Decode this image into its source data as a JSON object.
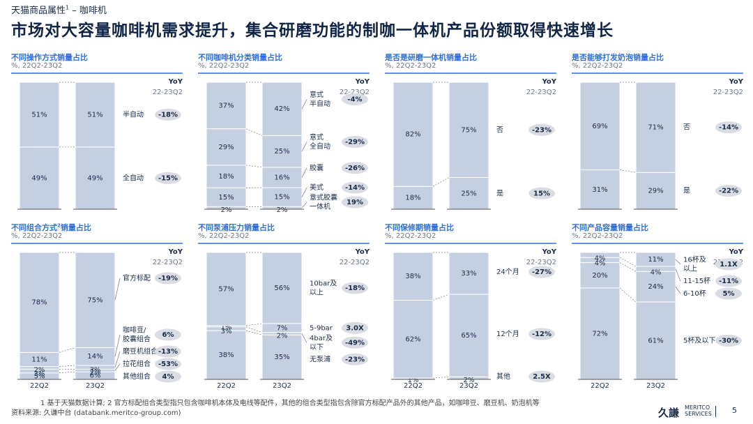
{
  "header": {
    "breadcrumb": "天猫商品属性",
    "breadcrumb_sup": "1",
    "breadcrumb_tail": " – 咖啡机",
    "title": "市场对大容量咖啡机需求提升，集合研磨功能的制咖一体机产品份额取得快速增长"
  },
  "colors": {
    "bar": "#c5cfe2",
    "accent": "#2f6fd6",
    "badge": "#d9dce3",
    "text": "#1a2b4a"
  },
  "yoy_header": {
    "label": "YoY",
    "period": "22-23Q2"
  },
  "chart_data": [
    {
      "type": "bar",
      "stacked": true,
      "title": "不同操作方式销量占比",
      "title_sup": "",
      "subtitle": "%, 22Q2-23Q2",
      "categories": [
        "22Q2",
        "23Q2"
      ],
      "show_categories": false,
      "series": [
        {
          "name": "全自动",
          "values": [
            49,
            49
          ],
          "labels": [
            "49%",
            "49%"
          ],
          "yoy": "-15%"
        },
        {
          "name": "半自动",
          "values": [
            51,
            51
          ],
          "labels": [
            "51%",
            "51%"
          ],
          "yoy": "-18%"
        }
      ]
    },
    {
      "type": "bar",
      "stacked": true,
      "title": "不同咖啡机分类销量占比",
      "title_sup": "",
      "subtitle": "%, 22Q2-23Q2",
      "categories": [
        "22Q2",
        "23Q2"
      ],
      "show_categories": false,
      "series": [
        {
          "name": "意式胶囊一体机",
          "values": [
            2,
            2
          ],
          "labels": [
            "2%",
            "2%"
          ],
          "yoy": "19%"
        },
        {
          "name": "美式",
          "values": [
            15,
            15
          ],
          "labels": [
            "15%",
            "15%"
          ],
          "yoy": "-14%"
        },
        {
          "name": "胶囊",
          "values": [
            18,
            16
          ],
          "labels": [
            "18%",
            "16%"
          ],
          "yoy": "-26%"
        },
        {
          "name": "意式全自动",
          "values": [
            29,
            25
          ],
          "labels": [
            "29%",
            "25%"
          ],
          "yoy": "-29%"
        },
        {
          "name": "意式半自动",
          "values": [
            37,
            42
          ],
          "labels": [
            "37%",
            "42%"
          ],
          "yoy": "-4%"
        }
      ]
    },
    {
      "type": "bar",
      "stacked": true,
      "title": "是否是研磨一体机销量占比",
      "title_sup": "",
      "subtitle": "%, 22Q2-23Q2",
      "categories": [
        "22Q2",
        "23Q2"
      ],
      "show_categories": false,
      "series": [
        {
          "name": "是",
          "values": [
            18,
            25
          ],
          "labels": [
            "18%",
            "25%"
          ],
          "yoy": "15%"
        },
        {
          "name": "否",
          "values": [
            82,
            75
          ],
          "labels": [
            "82%",
            "75%"
          ],
          "yoy": "-23%"
        }
      ]
    },
    {
      "type": "bar",
      "stacked": true,
      "title": "是否能够打发奶泡销量占比",
      "title_sup": "",
      "subtitle": "%, 22Q2-23Q2",
      "categories": [
        "22Q2",
        "23Q2"
      ],
      "show_categories": false,
      "series": [
        {
          "name": "是",
          "values": [
            31,
            29
          ],
          "labels": [
            "31%",
            "29%"
          ],
          "yoy": "-22%"
        },
        {
          "name": "否",
          "values": [
            69,
            71
          ],
          "labels": [
            "69%",
            "71%"
          ],
          "yoy": "-14%"
        }
      ]
    },
    {
      "type": "bar",
      "stacked": true,
      "title": "不同组合方式",
      "title_sup": "2",
      "title_tail": "销量占比",
      "subtitle": "%, 22Q2-23Q2",
      "categories": [
        "22Q2",
        "23Q2"
      ],
      "show_categories": true,
      "series": [
        {
          "name": "其他组合",
          "values": [
            5,
            6
          ],
          "labels": [
            "5%",
            "6%"
          ],
          "yoy": "4%"
        },
        {
          "name": "拉花组合",
          "values": [
            3,
            2
          ],
          "labels": [
            "3%",
            "2%"
          ],
          "yoy": "-53%"
        },
        {
          "name": "磨豆机组合",
          "values": [
            2,
            3
          ],
          "labels": [
            "2%",
            "3%"
          ],
          "yoy": "-13%"
        },
        {
          "name": "咖啡豆/胶囊组合",
          "values": [
            11,
            14
          ],
          "labels": [
            "11%",
            "14%"
          ],
          "yoy": "6%"
        },
        {
          "name": "官方标配",
          "values": [
            78,
            75
          ],
          "labels": [
            "78%",
            "75%"
          ],
          "yoy": "-19%"
        }
      ]
    },
    {
      "type": "bar",
      "stacked": true,
      "title": "不同泵浦压力销量占比",
      "title_sup": "",
      "subtitle": "%, 22Q2-23Q2",
      "categories": [
        "22Q2",
        "23Q2"
      ],
      "show_categories": true,
      "series": [
        {
          "name": "无泵浦",
          "values": [
            38,
            35
          ],
          "labels": [
            "38%",
            "35%"
          ],
          "yoy": "-23%"
        },
        {
          "name": "4bar及以下",
          "values": [
            3,
            2
          ],
          "labels": [
            "3%",
            "2%"
          ],
          "yoy": "-49%"
        },
        {
          "name": "5-9bar",
          "values": [
            1,
            7
          ],
          "labels": [
            "1%",
            "7%"
          ],
          "yoy": "3.0X"
        },
        {
          "name": "10bar及以上",
          "values": [
            57,
            56
          ],
          "labels": [
            "57%",
            "56%"
          ],
          "yoy": "-18%"
        }
      ]
    },
    {
      "type": "bar",
      "stacked": true,
      "title": "不同保修期销量占比",
      "title_sup": "",
      "subtitle": "%, 22Q2-23Q2",
      "categories": [
        "22Q2",
        "23Q2"
      ],
      "show_categories": true,
      "series": [
        {
          "name": "其他",
          "values": [
            1,
            2
          ],
          "labels": [
            "1%",
            "2%"
          ],
          "yoy": "2.5X"
        },
        {
          "name": "12个月",
          "values": [
            62,
            65
          ],
          "labels": [
            "62%",
            "65%"
          ],
          "yoy": "-12%"
        },
        {
          "name": "24个月",
          "values": [
            38,
            33
          ],
          "labels": [
            "38%",
            "33%"
          ],
          "yoy": "-27%"
        }
      ]
    },
    {
      "type": "bar",
      "stacked": true,
      "title": "不同产品容量销量占比",
      "title_sup": "",
      "subtitle": "%, 22Q2-23Q2",
      "categories": [
        "22Q2",
        "23Q2"
      ],
      "show_categories": true,
      "series": [
        {
          "name": "5杯及以下",
          "values": [
            72,
            61
          ],
          "labels": [
            "72%",
            "61%"
          ],
          "yoy": "-30%"
        },
        {
          "name": "6-10杯",
          "values": [
            20,
            24
          ],
          "labels": [
            "20%",
            "24%"
          ],
          "yoy": "5%"
        },
        {
          "name": "11-15杯",
          "values": [
            4,
            4
          ],
          "labels": [
            "4%",
            "4%"
          ],
          "yoy": "-11%"
        },
        {
          "name": "16杯及以上",
          "values": [
            4,
            11
          ],
          "labels": [
            "4%",
            "11%"
          ],
          "yoy": "1.1X"
        }
      ]
    }
  ],
  "footer": {
    "footnote": "1  基于天猫数据计算; 2  官方标配组合类型指只包含咖啡机本体及电线等配件，其他的组合类型指包含除官方标配产品外的其他产品，如咖啡豆、磨豆机、奶泡机等",
    "source": "资料来源: 久谦中台 (databank.meritco-group.com)",
    "brand": "久謙",
    "brand_line1": "MERITCO",
    "brand_line2": "SERVICES",
    "page": "5"
  }
}
